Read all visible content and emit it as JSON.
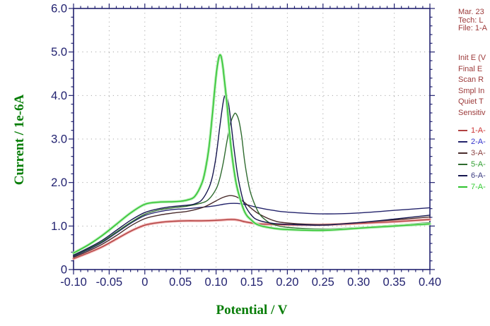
{
  "chart_data": {
    "type": "line",
    "title": "",
    "xlabel": "Potential / V",
    "ylabel": "Current / 1e-6A",
    "xlim": [
      -0.1,
      0.4
    ],
    "ylim": [
      0,
      6.0
    ],
    "x_ticks": [
      -0.1,
      -0.05,
      0,
      0.05,
      0.1,
      0.15,
      0.2,
      0.25,
      0.3,
      0.35,
      0.4
    ],
    "x_tick_labels": [
      "-0.10",
      "-0.05",
      "0",
      "0.05",
      "0.10",
      "0.15",
      "0.20",
      "0.25",
      "0.30",
      "0.35",
      "0.40"
    ],
    "y_ticks": [
      0,
      1,
      2,
      3,
      4,
      5,
      6
    ],
    "y_tick_labels": [
      "0",
      "1.0",
      "2.0",
      "3.0",
      "4.0",
      "5.0",
      "6.0"
    ],
    "x_minor_step": 0.01,
    "y_minor_step": 0.2,
    "grid": "dotted",
    "legend_position": "right",
    "axis_color": "#222270",
    "grid_color": "#a8a8a8",
    "title_color": "#077d07",
    "series": [
      {
        "name": "1-A-",
        "color": "#b04040",
        "glow": "#f2b6b6",
        "label_color": "#cc3333",
        "points": [
          [
            -0.1,
            0.25
          ],
          [
            -0.08,
            0.38
          ],
          [
            -0.06,
            0.52
          ],
          [
            -0.04,
            0.7
          ],
          [
            -0.02,
            0.88
          ],
          [
            0.0,
            1.02
          ],
          [
            0.02,
            1.08
          ],
          [
            0.04,
            1.11
          ],
          [
            0.06,
            1.12
          ],
          [
            0.08,
            1.12
          ],
          [
            0.1,
            1.13
          ],
          [
            0.12,
            1.15
          ],
          [
            0.13,
            1.14
          ],
          [
            0.14,
            1.1
          ],
          [
            0.15,
            1.07
          ],
          [
            0.16,
            1.05
          ],
          [
            0.18,
            1.04
          ],
          [
            0.2,
            1.03
          ],
          [
            0.25,
            1.03
          ],
          [
            0.3,
            1.06
          ],
          [
            0.35,
            1.1
          ],
          [
            0.4,
            1.15
          ]
        ]
      },
      {
        "name": "2-A-",
        "color": "#23236b",
        "glow": null,
        "label_color": "#3333cc",
        "points": [
          [
            -0.1,
            0.3
          ],
          [
            -0.08,
            0.45
          ],
          [
            -0.06,
            0.62
          ],
          [
            -0.04,
            0.84
          ],
          [
            -0.02,
            1.06
          ],
          [
            0.0,
            1.24
          ],
          [
            0.02,
            1.33
          ],
          [
            0.04,
            1.38
          ],
          [
            0.06,
            1.4
          ],
          [
            0.08,
            1.43
          ],
          [
            0.1,
            1.47
          ],
          [
            0.11,
            1.5
          ],
          [
            0.12,
            1.52
          ],
          [
            0.13,
            1.52
          ],
          [
            0.14,
            1.5
          ],
          [
            0.15,
            1.46
          ],
          [
            0.16,
            1.42
          ],
          [
            0.18,
            1.36
          ],
          [
            0.2,
            1.32
          ],
          [
            0.25,
            1.28
          ],
          [
            0.3,
            1.3
          ],
          [
            0.35,
            1.36
          ],
          [
            0.4,
            1.42
          ]
        ]
      },
      {
        "name": "3-A-",
        "color": "#4a2c2c",
        "glow": null,
        "label_color": "#8a4040",
        "points": [
          [
            -0.1,
            0.28
          ],
          [
            -0.08,
            0.42
          ],
          [
            -0.06,
            0.58
          ],
          [
            -0.04,
            0.78
          ],
          [
            -0.02,
            1.0
          ],
          [
            0.0,
            1.17
          ],
          [
            0.02,
            1.25
          ],
          [
            0.04,
            1.3
          ],
          [
            0.06,
            1.34
          ],
          [
            0.08,
            1.42
          ],
          [
            0.09,
            1.49
          ],
          [
            0.1,
            1.58
          ],
          [
            0.11,
            1.66
          ],
          [
            0.12,
            1.7
          ],
          [
            0.13,
            1.66
          ],
          [
            0.14,
            1.54
          ],
          [
            0.15,
            1.4
          ],
          [
            0.16,
            1.28
          ],
          [
            0.18,
            1.13
          ],
          [
            0.2,
            1.07
          ],
          [
            0.25,
            1.03
          ],
          [
            0.3,
            1.08
          ],
          [
            0.35,
            1.14
          ],
          [
            0.4,
            1.21
          ]
        ]
      },
      {
        "name": "5-A-",
        "color": "#2f6b2f",
        "glow": null,
        "label_color": "#33a033",
        "points": [
          [
            -0.1,
            0.32
          ],
          [
            -0.08,
            0.47
          ],
          [
            -0.06,
            0.64
          ],
          [
            -0.04,
            0.86
          ],
          [
            -0.02,
            1.08
          ],
          [
            0.0,
            1.27
          ],
          [
            0.02,
            1.37
          ],
          [
            0.04,
            1.42
          ],
          [
            0.06,
            1.46
          ],
          [
            0.08,
            1.53
          ],
          [
            0.09,
            1.62
          ],
          [
            0.1,
            1.85
          ],
          [
            0.105,
            2.08
          ],
          [
            0.11,
            2.45
          ],
          [
            0.115,
            2.92
          ],
          [
            0.12,
            3.35
          ],
          [
            0.125,
            3.56
          ],
          [
            0.128,
            3.58
          ],
          [
            0.132,
            3.42
          ],
          [
            0.136,
            3.05
          ],
          [
            0.14,
            2.5
          ],
          [
            0.145,
            2.0
          ],
          [
            0.15,
            1.68
          ],
          [
            0.16,
            1.3
          ],
          [
            0.17,
            1.13
          ],
          [
            0.18,
            1.04
          ],
          [
            0.2,
            0.97
          ],
          [
            0.25,
            0.93
          ],
          [
            0.3,
            0.97
          ],
          [
            0.35,
            1.02
          ],
          [
            0.4,
            1.08
          ]
        ]
      },
      {
        "name": "6-A-",
        "color": "#16164f",
        "glow": null,
        "label_color": "#3a3a80",
        "points": [
          [
            -0.1,
            0.33
          ],
          [
            -0.08,
            0.49
          ],
          [
            -0.06,
            0.67
          ],
          [
            -0.04,
            0.9
          ],
          [
            -0.02,
            1.13
          ],
          [
            0.0,
            1.31
          ],
          [
            0.02,
            1.4
          ],
          [
            0.04,
            1.45
          ],
          [
            0.06,
            1.48
          ],
          [
            0.07,
            1.51
          ],
          [
            0.08,
            1.6
          ],
          [
            0.09,
            1.88
          ],
          [
            0.095,
            2.15
          ],
          [
            0.1,
            2.6
          ],
          [
            0.105,
            3.25
          ],
          [
            0.11,
            3.85
          ],
          [
            0.113,
            4.0
          ],
          [
            0.117,
            3.85
          ],
          [
            0.12,
            3.5
          ],
          [
            0.125,
            2.8
          ],
          [
            0.13,
            2.2
          ],
          [
            0.135,
            1.78
          ],
          [
            0.14,
            1.5
          ],
          [
            0.15,
            1.24
          ],
          [
            0.16,
            1.13
          ],
          [
            0.18,
            1.06
          ],
          [
            0.2,
            1.04
          ],
          [
            0.25,
            1.02
          ],
          [
            0.3,
            1.08
          ],
          [
            0.35,
            1.16
          ],
          [
            0.4,
            1.25
          ]
        ]
      },
      {
        "name": "7-A-",
        "color": "#2dc22d",
        "glow": "#b0ecb0",
        "label_color": "#33cc33",
        "points": [
          [
            -0.1,
            0.38
          ],
          [
            -0.08,
            0.56
          ],
          [
            -0.06,
            0.78
          ],
          [
            -0.04,
            1.04
          ],
          [
            -0.02,
            1.3
          ],
          [
            0.0,
            1.5
          ],
          [
            0.02,
            1.55
          ],
          [
            0.04,
            1.56
          ],
          [
            0.05,
            1.57
          ],
          [
            0.06,
            1.6
          ],
          [
            0.07,
            1.68
          ],
          [
            0.08,
            1.98
          ],
          [
            0.085,
            2.3
          ],
          [
            0.09,
            2.8
          ],
          [
            0.095,
            3.6
          ],
          [
            0.1,
            4.45
          ],
          [
            0.104,
            4.88
          ],
          [
            0.107,
            4.9
          ],
          [
            0.11,
            4.6
          ],
          [
            0.115,
            3.85
          ],
          [
            0.12,
            2.95
          ],
          [
            0.125,
            2.3
          ],
          [
            0.13,
            1.85
          ],
          [
            0.14,
            1.33
          ],
          [
            0.15,
            1.13
          ],
          [
            0.16,
            1.02
          ],
          [
            0.18,
            0.95
          ],
          [
            0.2,
            0.92
          ],
          [
            0.25,
            0.9
          ],
          [
            0.3,
            0.95
          ],
          [
            0.35,
            1.0
          ],
          [
            0.4,
            1.05
          ]
        ]
      }
    ]
  },
  "info_panel": {
    "text_color": "#9c3a3a",
    "header_lines": [
      "Mar. 23",
      "Tech: L",
      "File: 1-A"
    ],
    "param_lines": [
      "Init E (V",
      "Final E",
      "Scan R",
      "Smpl In",
      "Quiet T",
      "Sensitiv"
    ]
  }
}
